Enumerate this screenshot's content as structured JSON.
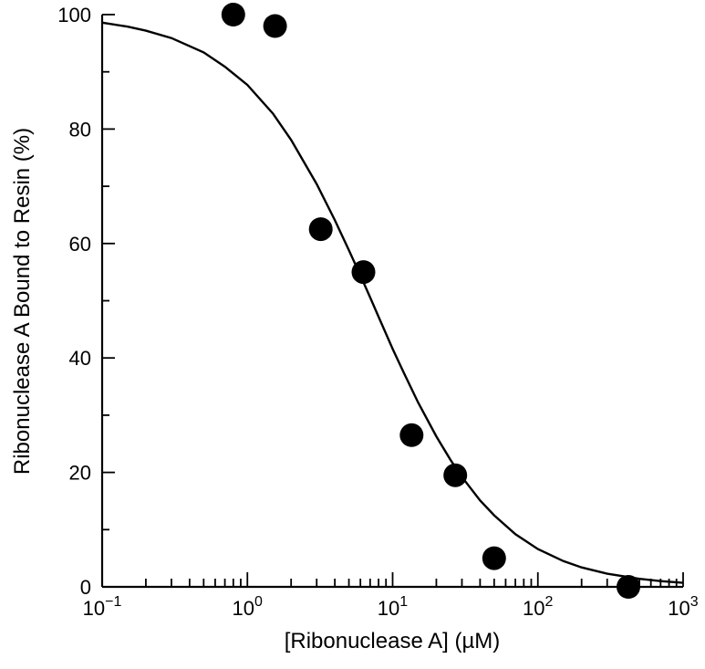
{
  "chart_data": {
    "type": "scatter",
    "title": "",
    "xlabel": "[Ribonuclease A] (µM)",
    "ylabel": "Ribonuclease A Bound to Resin (%)",
    "x_scale": "log",
    "xlim": [
      0.1,
      1000
    ],
    "ylim": [
      0,
      100
    ],
    "grid": false,
    "x_ticks": [
      {
        "value": 0.1,
        "base": "10",
        "exp": "−1"
      },
      {
        "value": 1,
        "base": "10",
        "exp": "0"
      },
      {
        "value": 10,
        "base": "10",
        "exp": "1"
      },
      {
        "value": 100,
        "base": "10",
        "exp": "2"
      },
      {
        "value": 1000,
        "base": "10",
        "exp": "3"
      }
    ],
    "y_ticks": [
      0,
      20,
      40,
      60,
      80,
      100
    ],
    "series": [
      {
        "type": "scatter",
        "x": [
          0.8,
          1.55,
          3.2,
          6.3,
          13.5,
          27,
          50,
          420
        ],
        "y": [
          100,
          98,
          62.5,
          55,
          26.5,
          19.5,
          5,
          0
        ]
      },
      {
        "type": "line",
        "x": [
          0.1,
          0.15,
          0.2,
          0.3,
          0.5,
          0.7,
          1,
          1.5,
          2,
          3,
          4,
          5,
          6,
          7,
          8,
          10,
          12,
          15,
          20,
          25,
          30,
          40,
          50,
          70,
          100,
          150,
          200,
          300,
          500,
          700,
          1000
        ],
        "y": [
          98.6,
          97.9,
          97.2,
          95.9,
          93.4,
          90.9,
          87.7,
          82.7,
          78.1,
          70.4,
          64.1,
          58.8,
          54.4,
          50.6,
          47.2,
          41.6,
          37.3,
          32.2,
          26.3,
          22.2,
          19.2,
          15.1,
          12.5,
          9.2,
          6.6,
          4.5,
          3.4,
          2.3,
          1.4,
          1.0,
          0.7
        ]
      }
    ]
  }
}
